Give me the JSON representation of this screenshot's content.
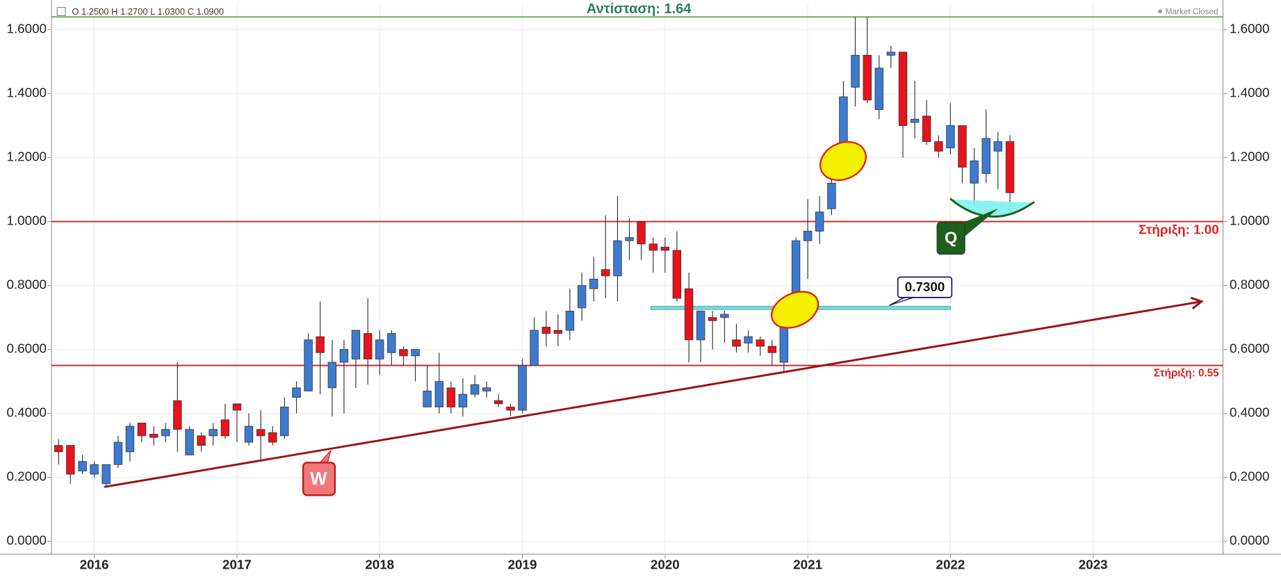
{
  "chart_data": {
    "type": "candlestick",
    "header": "O 1.2500   H 1.2700   L 1.0300   C 1.0900",
    "status": "Market Closed",
    "up_color": "#3d7bd1",
    "down_color": "#e8131b",
    "grid": true,
    "x": [
      2015.75,
      2015.833,
      2015.917,
      2016,
      2016.083,
      2016.167,
      2016.25,
      2016.333,
      2016.417,
      2016.5,
      2016.583,
      2016.667,
      2016.75,
      2016.833,
      2016.917,
      2017,
      2017.083,
      2017.167,
      2017.25,
      2017.333,
      2017.417,
      2017.5,
      2017.583,
      2017.667,
      2017.75,
      2017.833,
      2017.917,
      2018,
      2018.083,
      2018.167,
      2018.25,
      2018.333,
      2018.417,
      2018.5,
      2018.583,
      2018.667,
      2018.75,
      2018.833,
      2018.917,
      2019,
      2019.083,
      2019.167,
      2019.25,
      2019.333,
      2019.417,
      2019.5,
      2019.583,
      2019.667,
      2019.75,
      2019.833,
      2019.917,
      2020,
      2020.083,
      2020.167,
      2020.25,
      2020.333,
      2020.417,
      2020.5,
      2020.583,
      2020.667,
      2020.75,
      2020.833,
      2020.917,
      2021,
      2021.083,
      2021.167,
      2021.25,
      2021.333,
      2021.417,
      2021.5,
      2021.583,
      2021.667,
      2021.75,
      2021.833,
      2021.917,
      2022,
      2022.083,
      2022.167,
      2022.25,
      2022.333,
      2022.417
    ],
    "open": [
      0.3,
      0.3,
      0.22,
      0.21,
      0.18,
      0.24,
      0.28,
      0.37,
      0.335,
      0.33,
      0.44,
      0.27,
      0.33,
      0.33,
      0.38,
      0.43,
      0.31,
      0.35,
      0.34,
      0.33,
      0.45,
      0.47,
      0.64,
      0.48,
      0.56,
      0.57,
      0.65,
      0.57,
      0.59,
      0.6,
      0.58,
      0.42,
      0.42,
      0.48,
      0.42,
      0.46,
      0.47,
      0.44,
      0.42,
      0.41,
      0.55,
      0.67,
      0.66,
      0.66,
      0.73,
      0.79,
      0.85,
      0.83,
      0.94,
      1.0,
      0.93,
      0.92,
      0.91,
      0.79,
      0.63,
      0.7,
      0.7,
      0.63,
      0.62,
      0.63,
      0.61,
      0.56,
      0.69,
      0.94,
      0.97,
      1.04,
      1.16,
      1.42,
      1.52,
      1.35,
      1.52,
      1.53,
      1.31,
      1.33,
      1.25,
      1.23,
      1.3,
      1.12,
      1.15,
      1.22,
      1.25
    ],
    "high": [
      0.32,
      0.3,
      0.27,
      0.25,
      0.24,
      0.33,
      0.37,
      0.37,
      0.36,
      0.37,
      0.56,
      0.36,
      0.34,
      0.37,
      0.43,
      0.43,
      0.4,
      0.41,
      0.36,
      0.45,
      0.5,
      0.65,
      0.75,
      0.63,
      0.63,
      0.66,
      0.76,
      0.66,
      0.66,
      0.61,
      0.6,
      0.55,
      0.59,
      0.5,
      0.51,
      0.52,
      0.5,
      0.46,
      0.43,
      0.57,
      0.7,
      0.72,
      0.71,
      0.79,
      0.84,
      0.89,
      1.02,
      1.08,
      1.01,
      1.0,
      0.95,
      0.95,
      0.97,
      0.84,
      0.72,
      0.72,
      0.72,
      0.68,
      0.66,
      0.64,
      0.63,
      0.75,
      0.95,
      1.07,
      1.08,
      1.14,
      1.44,
      1.64,
      1.64,
      1.52,
      1.55,
      1.53,
      1.44,
      1.38,
      1.27,
      1.37,
      1.3,
      1.23,
      1.35,
      1.28,
      1.27
    ],
    "low": [
      0.24,
      0.18,
      0.21,
      0.2,
      0.17,
      0.23,
      0.25,
      0.31,
      0.3,
      0.31,
      0.28,
      0.27,
      0.28,
      0.3,
      0.32,
      0.31,
      0.3,
      0.25,
      0.3,
      0.32,
      0.4,
      0.47,
      0.46,
      0.39,
      0.4,
      0.48,
      0.49,
      0.52,
      0.55,
      0.55,
      0.5,
      0.42,
      0.4,
      0.4,
      0.39,
      0.45,
      0.45,
      0.42,
      0.39,
      0.4,
      0.55,
      0.61,
      0.61,
      0.63,
      0.69,
      0.75,
      0.76,
      0.75,
      0.88,
      0.88,
      0.84,
      0.84,
      0.75,
      0.56,
      0.56,
      0.6,
      0.62,
      0.59,
      0.59,
      0.58,
      0.55,
      0.53,
      0.69,
      0.82,
      0.93,
      1.02,
      1.13,
      1.36,
      1.37,
      1.32,
      1.48,
      1.2,
      1.26,
      1.24,
      1.2,
      1.21,
      1.12,
      1.05,
      1.12,
      1.1,
      1.03
    ],
    "close": [
      0.28,
      0.21,
      0.25,
      0.24,
      0.24,
      0.31,
      0.36,
      0.33,
      0.325,
      0.35,
      0.35,
      0.35,
      0.3,
      0.35,
      0.33,
      0.41,
      0.36,
      0.33,
      0.31,
      0.42,
      0.48,
      0.63,
      0.59,
      0.56,
      0.6,
      0.66,
      0.57,
      0.63,
      0.65,
      0.58,
      0.6,
      0.47,
      0.5,
      0.42,
      0.46,
      0.49,
      0.48,
      0.43,
      0.41,
      0.55,
      0.66,
      0.65,
      0.65,
      0.72,
      0.8,
      0.82,
      0.83,
      0.94,
      0.95,
      0.93,
      0.91,
      0.91,
      0.76,
      0.63,
      0.72,
      0.69,
      0.71,
      0.61,
      0.64,
      0.61,
      0.59,
      0.68,
      0.94,
      0.97,
      1.03,
      1.12,
      1.39,
      1.52,
      1.38,
      1.48,
      1.53,
      1.3,
      1.32,
      1.25,
      1.22,
      1.3,
      1.17,
      1.19,
      1.26,
      1.25,
      1.09
    ],
    "xlim": [
      2015.7,
      2023.91
    ],
    "xticks": [
      2016,
      2017,
      2018,
      2019,
      2020,
      2021,
      2022,
      2023
    ],
    "ylim": [
      -0.04,
      1.68
    ],
    "yticks": [
      {
        "value": 0,
        "label": "0.0000"
      },
      {
        "value": 0.2,
        "label": "0.2000"
      },
      {
        "value": 0.4,
        "label": "0.4000"
      },
      {
        "value": 0.6,
        "label": "0.6000"
      },
      {
        "value": 0.8,
        "label": "0.8000"
      },
      {
        "value": 1.0,
        "label": "1.0000"
      },
      {
        "value": 1.2,
        "label": "1.2000"
      },
      {
        "value": 1.4,
        "label": "1.4000"
      },
      {
        "value": 1.6,
        "label": "1.6000"
      }
    ],
    "hlines": [
      {
        "value": 1.64,
        "label": "Αντίσταση: 1.64",
        "color": "#5fb04f"
      },
      {
        "value": 1.0,
        "label": "Στήριξη: 1.00",
        "color": "#e02020"
      },
      {
        "value": 0.55,
        "label": "Στήριξη: 0.55",
        "color": "#d42020"
      }
    ],
    "price_line": {
      "value": 0.73,
      "label": "0.7300",
      "x": [
        2019.9,
        2022.0
      ],
      "color": "#7fd8d8"
    },
    "trendline": {
      "x": [
        2016.07,
        2023.76
      ],
      "values": [
        0.17,
        0.75
      ],
      "color": "#9b1111"
    },
    "callouts": [
      "W",
      "Q"
    ]
  }
}
